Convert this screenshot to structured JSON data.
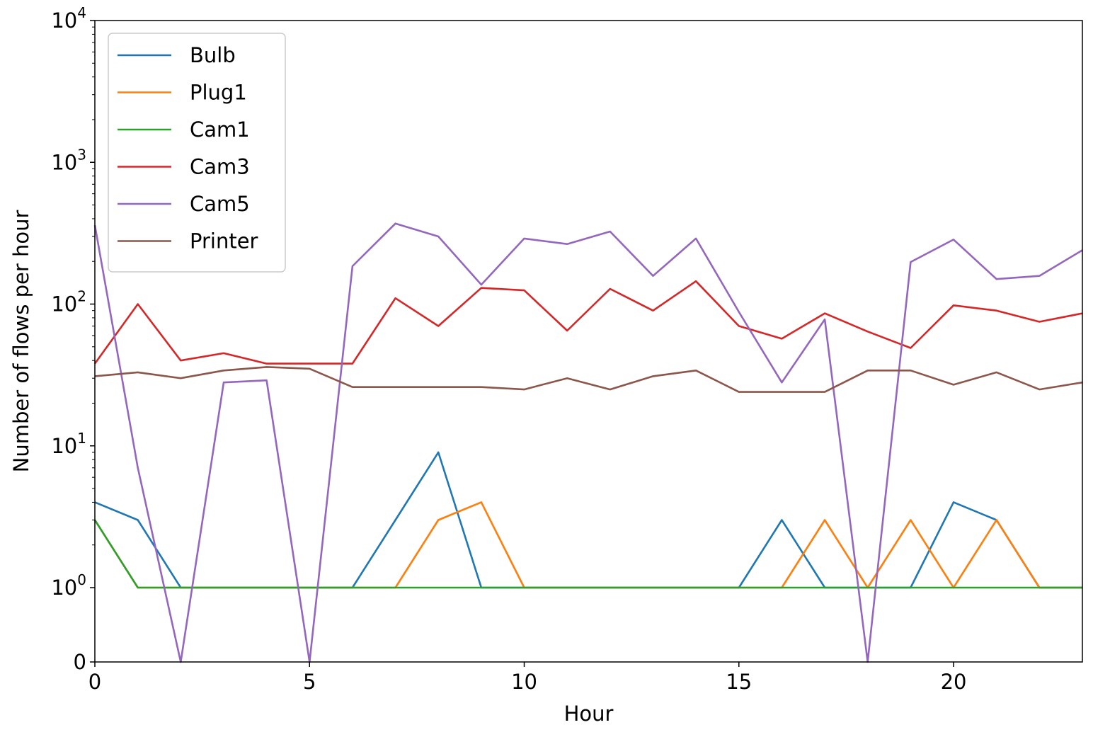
{
  "chart_data": {
    "type": "line",
    "xlabel": "Hour",
    "ylabel": "Number of flows per hour",
    "xlim": [
      0,
      23
    ],
    "ylim": [
      0,
      10000
    ],
    "yscale": "symlog",
    "x_ticks": [
      0,
      5,
      10,
      15,
      20
    ],
    "y_ticks": [
      {
        "value": 0,
        "base": "0",
        "exp": ""
      },
      {
        "value": 1,
        "base": "10",
        "exp": "0"
      },
      {
        "value": 10,
        "base": "10",
        "exp": "1"
      },
      {
        "value": 100,
        "base": "10",
        "exp": "2"
      },
      {
        "value": 1000,
        "base": "10",
        "exp": "3"
      },
      {
        "value": 10000,
        "base": "10",
        "exp": "4"
      }
    ],
    "grid": false,
    "legend_position": "top-left",
    "x": [
      0,
      1,
      2,
      3,
      4,
      5,
      6,
      7,
      8,
      9,
      10,
      11,
      12,
      13,
      14,
      15,
      16,
      17,
      18,
      19,
      20,
      21,
      22,
      23
    ],
    "series": [
      {
        "name": "Bulb",
        "color": "#1f77b4",
        "values": [
          4,
          3,
          1,
          1,
          1,
          1,
          1,
          3,
          9,
          1,
          1,
          1,
          1,
          1,
          1,
          1,
          3,
          1,
          1,
          1,
          4,
          3,
          1,
          1
        ]
      },
      {
        "name": "Plug1",
        "color": "#ff7f0e",
        "values": [
          3,
          1,
          1,
          1,
          1,
          1,
          1,
          1,
          3,
          4,
          1,
          1,
          1,
          1,
          1,
          1,
          1,
          3,
          1,
          3,
          1,
          3,
          1,
          1
        ]
      },
      {
        "name": "Cam1",
        "color": "#2ca02c",
        "values": [
          3,
          1,
          1,
          1,
          1,
          1,
          1,
          1,
          1,
          1,
          1,
          1,
          1,
          1,
          1,
          1,
          1,
          1,
          1,
          1,
          1,
          1,
          1,
          1
        ]
      },
      {
        "name": "Cam3",
        "color": "#d62728",
        "values": [
          38,
          100,
          40,
          45,
          38,
          38,
          38,
          110,
          70,
          130,
          125,
          65,
          128,
          90,
          145,
          70,
          57,
          86,
          64,
          49,
          98,
          90,
          75,
          86
        ]
      },
      {
        "name": "Cam5",
        "color": "#9467bd",
        "values": [
          360,
          7,
          0,
          28,
          29,
          0,
          185,
          370,
          300,
          137,
          290,
          265,
          325,
          158,
          290,
          88,
          28,
          78,
          0,
          198,
          285,
          150,
          158,
          240
        ]
      },
      {
        "name": "Printer",
        "color": "#8c564b",
        "values": [
          31,
          33,
          30,
          34,
          36,
          35,
          26,
          26,
          26,
          26,
          25,
          30,
          25,
          31,
          34,
          24,
          24,
          24,
          34,
          34,
          27,
          33,
          25,
          28
        ]
      }
    ]
  }
}
